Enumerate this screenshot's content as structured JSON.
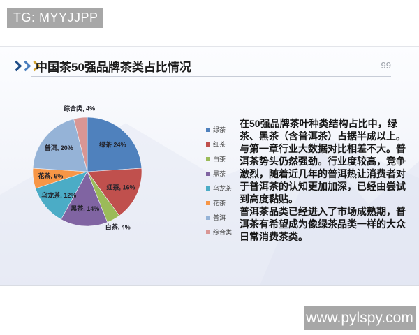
{
  "watermarks": {
    "top": "TG: MYYJJPP",
    "bottom": "www.pylspy.com"
  },
  "slide": {
    "title": "中国茶50强品牌茶类占比情况",
    "page_number": "99",
    "body_paragraphs": [
      "在50强品牌茶叶种类结构占比中，绿茶、黑茶（含普洱茶）占据半成以上。与第一章行业大数据对比相差不大。普洱茶势头仍然强劲。行业度较高，竞争激烈，随着近几年的普洱热让消费者对于普洱茶的认知更加加深，已经由尝试到高度黏贴。",
      "普洱茶品类已经进入了市场成熟期，普洱茶有希望成为像绿茶品类一样的大众日常消费茶类。"
    ]
  },
  "chart_data": {
    "type": "pie",
    "title": "",
    "categories": [
      "绿茶",
      "红茶",
      "白茶",
      "黑茶",
      "乌龙茶",
      "花茶",
      "普洱",
      "综合类"
    ],
    "values": [
      24,
      16,
      4,
      14,
      12,
      6,
      20,
      4
    ],
    "unit": "%",
    "colors": [
      "#4f81bd",
      "#c0504d",
      "#9bbb59",
      "#8064a2",
      "#4bacc6",
      "#f79646",
      "#95b3d7",
      "#d99694"
    ],
    "slice_labels": [
      "绿茶 24%",
      "红茶, 16%",
      "白茶, 4%",
      "黑茶, 14%",
      "乌龙茶, 12%",
      "花茶, 6%",
      "普洱, 20%",
      "综合类, 4%"
    ],
    "label_placement": [
      "inside",
      "inside",
      "outside",
      "inside",
      "inside",
      "inside",
      "inside",
      "outside"
    ],
    "start_angle_deg": -90,
    "direction": "clockwise",
    "legend_position": "right",
    "legend": [
      "绿茶",
      "红茶",
      "白茶",
      "黑茶",
      "乌龙茶",
      "花茶",
      "普洱",
      "综合类"
    ]
  }
}
